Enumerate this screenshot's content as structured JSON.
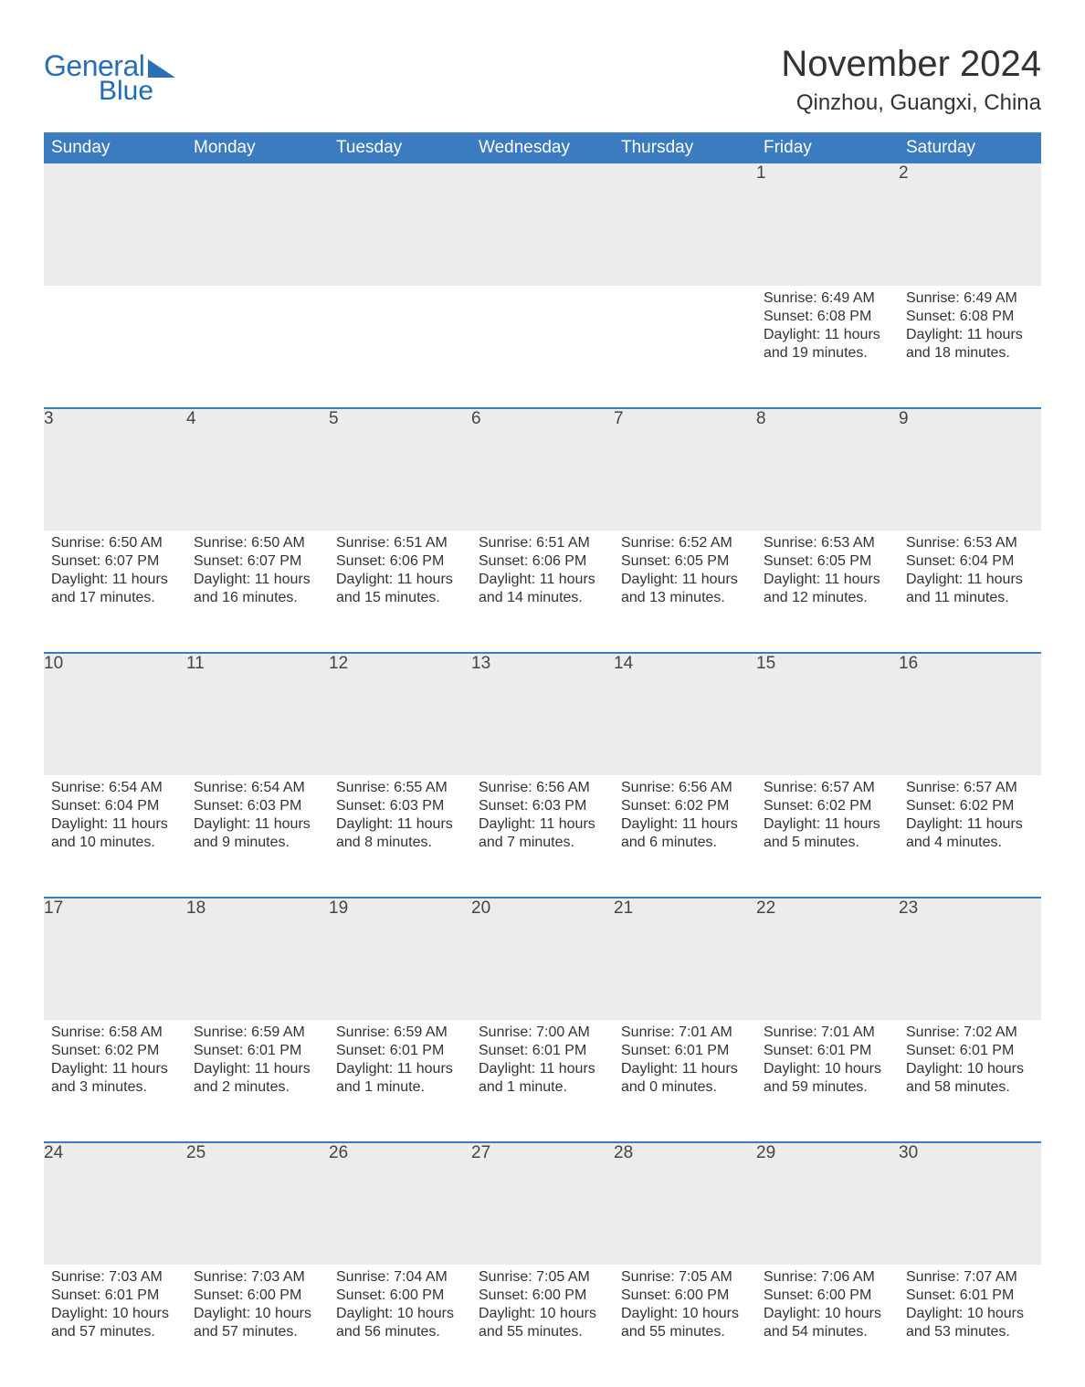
{
  "brand": {
    "word1": "General",
    "word2": "Blue"
  },
  "title": "November 2024",
  "location": "Qinzhou, Guangxi, China",
  "colors": {
    "header_bg": "#3b7bbf",
    "header_text": "#ffffff",
    "row_sep": "#3b7bbf",
    "daynum_bg": "#ececec",
    "page_bg": "#ffffff",
    "text": "#333333",
    "logo": "#2a6fb5"
  },
  "font": {
    "family": "Arial",
    "title_size_pt": 30,
    "location_size_pt": 18,
    "header_size_pt": 14,
    "body_size_pt": 12
  },
  "weekdays": [
    "Sunday",
    "Monday",
    "Tuesday",
    "Wednesday",
    "Thursday",
    "Friday",
    "Saturday"
  ],
  "grid": {
    "rows": 5,
    "cols": 7,
    "first_weekday_index": 5,
    "days_in_month": 30
  },
  "days": {
    "1": {
      "sunrise": "Sunrise: 6:49 AM",
      "sunset": "Sunset: 6:08 PM",
      "daylight": "Daylight: 11 hours and 19 minutes."
    },
    "2": {
      "sunrise": "Sunrise: 6:49 AM",
      "sunset": "Sunset: 6:08 PM",
      "daylight": "Daylight: 11 hours and 18 minutes."
    },
    "3": {
      "sunrise": "Sunrise: 6:50 AM",
      "sunset": "Sunset: 6:07 PM",
      "daylight": "Daylight: 11 hours and 17 minutes."
    },
    "4": {
      "sunrise": "Sunrise: 6:50 AM",
      "sunset": "Sunset: 6:07 PM",
      "daylight": "Daylight: 11 hours and 16 minutes."
    },
    "5": {
      "sunrise": "Sunrise: 6:51 AM",
      "sunset": "Sunset: 6:06 PM",
      "daylight": "Daylight: 11 hours and 15 minutes."
    },
    "6": {
      "sunrise": "Sunrise: 6:51 AM",
      "sunset": "Sunset: 6:06 PM",
      "daylight": "Daylight: 11 hours and 14 minutes."
    },
    "7": {
      "sunrise": "Sunrise: 6:52 AM",
      "sunset": "Sunset: 6:05 PM",
      "daylight": "Daylight: 11 hours and 13 minutes."
    },
    "8": {
      "sunrise": "Sunrise: 6:53 AM",
      "sunset": "Sunset: 6:05 PM",
      "daylight": "Daylight: 11 hours and 12 minutes."
    },
    "9": {
      "sunrise": "Sunrise: 6:53 AM",
      "sunset": "Sunset: 6:04 PM",
      "daylight": "Daylight: 11 hours and 11 minutes."
    },
    "10": {
      "sunrise": "Sunrise: 6:54 AM",
      "sunset": "Sunset: 6:04 PM",
      "daylight": "Daylight: 11 hours and 10 minutes."
    },
    "11": {
      "sunrise": "Sunrise: 6:54 AM",
      "sunset": "Sunset: 6:03 PM",
      "daylight": "Daylight: 11 hours and 9 minutes."
    },
    "12": {
      "sunrise": "Sunrise: 6:55 AM",
      "sunset": "Sunset: 6:03 PM",
      "daylight": "Daylight: 11 hours and 8 minutes."
    },
    "13": {
      "sunrise": "Sunrise: 6:56 AM",
      "sunset": "Sunset: 6:03 PM",
      "daylight": "Daylight: 11 hours and 7 minutes."
    },
    "14": {
      "sunrise": "Sunrise: 6:56 AM",
      "sunset": "Sunset: 6:02 PM",
      "daylight": "Daylight: 11 hours and 6 minutes."
    },
    "15": {
      "sunrise": "Sunrise: 6:57 AM",
      "sunset": "Sunset: 6:02 PM",
      "daylight": "Daylight: 11 hours and 5 minutes."
    },
    "16": {
      "sunrise": "Sunrise: 6:57 AM",
      "sunset": "Sunset: 6:02 PM",
      "daylight": "Daylight: 11 hours and 4 minutes."
    },
    "17": {
      "sunrise": "Sunrise: 6:58 AM",
      "sunset": "Sunset: 6:02 PM",
      "daylight": "Daylight: 11 hours and 3 minutes."
    },
    "18": {
      "sunrise": "Sunrise: 6:59 AM",
      "sunset": "Sunset: 6:01 PM",
      "daylight": "Daylight: 11 hours and 2 minutes."
    },
    "19": {
      "sunrise": "Sunrise: 6:59 AM",
      "sunset": "Sunset: 6:01 PM",
      "daylight": "Daylight: 11 hours and 1 minute."
    },
    "20": {
      "sunrise": "Sunrise: 7:00 AM",
      "sunset": "Sunset: 6:01 PM",
      "daylight": "Daylight: 11 hours and 1 minute."
    },
    "21": {
      "sunrise": "Sunrise: 7:01 AM",
      "sunset": "Sunset: 6:01 PM",
      "daylight": "Daylight: 11 hours and 0 minutes."
    },
    "22": {
      "sunrise": "Sunrise: 7:01 AM",
      "sunset": "Sunset: 6:01 PM",
      "daylight": "Daylight: 10 hours and 59 minutes."
    },
    "23": {
      "sunrise": "Sunrise: 7:02 AM",
      "sunset": "Sunset: 6:01 PM",
      "daylight": "Daylight: 10 hours and 58 minutes."
    },
    "24": {
      "sunrise": "Sunrise: 7:03 AM",
      "sunset": "Sunset: 6:01 PM",
      "daylight": "Daylight: 10 hours and 57 minutes."
    },
    "25": {
      "sunrise": "Sunrise: 7:03 AM",
      "sunset": "Sunset: 6:00 PM",
      "daylight": "Daylight: 10 hours and 57 minutes."
    },
    "26": {
      "sunrise": "Sunrise: 7:04 AM",
      "sunset": "Sunset: 6:00 PM",
      "daylight": "Daylight: 10 hours and 56 minutes."
    },
    "27": {
      "sunrise": "Sunrise: 7:05 AM",
      "sunset": "Sunset: 6:00 PM",
      "daylight": "Daylight: 10 hours and 55 minutes."
    },
    "28": {
      "sunrise": "Sunrise: 7:05 AM",
      "sunset": "Sunset: 6:00 PM",
      "daylight": "Daylight: 10 hours and 55 minutes."
    },
    "29": {
      "sunrise": "Sunrise: 7:06 AM",
      "sunset": "Sunset: 6:00 PM",
      "daylight": "Daylight: 10 hours and 54 minutes."
    },
    "30": {
      "sunrise": "Sunrise: 7:07 AM",
      "sunset": "Sunset: 6:01 PM",
      "daylight": "Daylight: 10 hours and 53 minutes."
    }
  }
}
